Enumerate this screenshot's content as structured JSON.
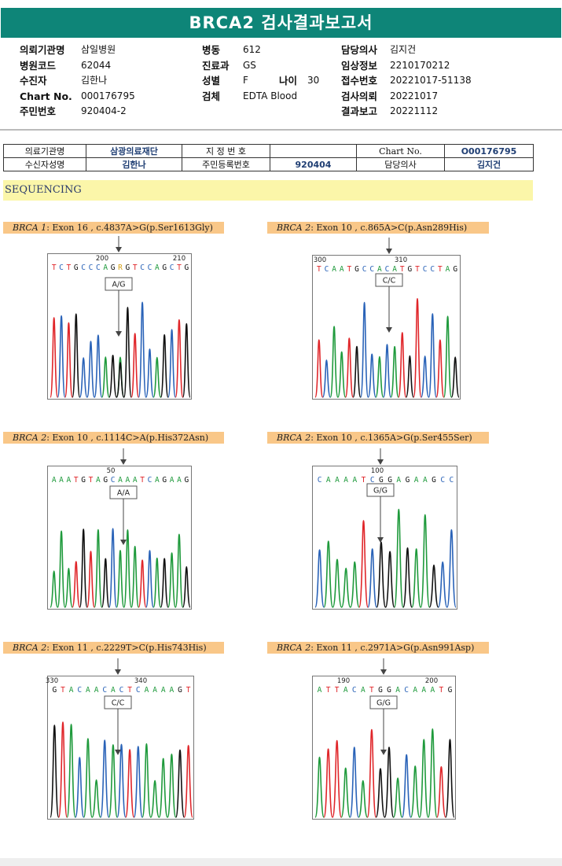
{
  "report": {
    "title": "BRCA2 검사결과보고서"
  },
  "header": {
    "col1": [
      {
        "label": "의뢰기관명",
        "value": "삼일병원"
      },
      {
        "label": "병원코드",
        "value": "62044"
      },
      {
        "label": "수진자",
        "value": "김한나"
      },
      {
        "label": "Chart No.",
        "value": "000176795"
      },
      {
        "label": "주민번호",
        "value": "920404-2"
      }
    ],
    "col2": [
      {
        "label": "병동",
        "value": "612"
      },
      {
        "label": "진료과",
        "value": "GS"
      },
      {
        "label": "성별",
        "value": "F"
      },
      {
        "label": "검체",
        "value": "EDTA Blood"
      }
    ],
    "age": {
      "label": "나이",
      "value": "30"
    },
    "col3": [
      {
        "label": "담당의사",
        "value": "김지건"
      },
      {
        "label": "임상정보",
        "value": "2210170212"
      },
      {
        "label": "접수번호",
        "value": "20221017-51138"
      },
      {
        "label": "검사의뢰",
        "value": "20221017"
      },
      {
        "label": "결과보고",
        "value": "20221112"
      }
    ]
  },
  "info_table": {
    "r1": {
      "l1": "의료기관명",
      "v1": "삼광의료재단",
      "l2": "지 정 번 호",
      "v2": "",
      "l3": "Chart No.",
      "v3": "O00176795"
    },
    "r2": {
      "l1": "수신자성명",
      "v1": "김한나",
      "l2": "주민등록번호",
      "v2": "920404",
      "l3": "담당의사",
      "v3": "김지건"
    }
  },
  "section": {
    "title": "SEQUENCING"
  },
  "colors": {
    "A": "#1f9a3c",
    "C": "#2a63b8",
    "G": "#111111",
    "T": "#e0262a",
    "header": "#0e8578",
    "label_bg": "#f9c788",
    "seq_band": "#fbf6a9"
  },
  "variants": [
    {
      "gene": "BRCA 1",
      "detail": ": Exon 16 , c.4837A>G(p.Ser1613Gly)",
      "positions": [
        "200",
        "210"
      ],
      "sequence": "TCTGCCCAGRGTCCAGCTG",
      "genotype": "A/G"
    },
    {
      "gene": "BRCA 2",
      "detail": ": Exon 10 , c.865A>C(p.Asn289His)",
      "positions": [
        "300",
        "310"
      ],
      "sequence": "TCAATGCCACATGTCCTAG",
      "genotype": "C/C"
    },
    {
      "gene": "BRCA 2",
      "detail": ": Exon 10 , c.1114C>A(p.His372Asn)",
      "positions": [
        "50"
      ],
      "sequence": "AAATGTAGCAAATCAGAAG",
      "genotype": "A/A"
    },
    {
      "gene": "BRCA 2",
      "detail": ": Exon 10 , c.1365A>G(p.Ser455Ser)",
      "positions": [
        "100"
      ],
      "sequence": "CAAAATCGGAGAAGCC",
      "genotype": "G/G"
    },
    {
      "gene": "BRCA 2",
      "detail": ": Exon 11 , c.2229T>C(p.His743His)",
      "positions": [
        "330",
        "340"
      ],
      "sequence": "GTACAACACTCAAAAGT",
      "genotype": "C/C"
    },
    {
      "gene": "BRCA 2",
      "detail": ": Exon 11 , c.2971A>G(p.Asn991Asp)",
      "positions": [
        "190",
        "200"
      ],
      "sequence": "ATTACATGGACAAATG",
      "genotype": "G/G"
    }
  ]
}
